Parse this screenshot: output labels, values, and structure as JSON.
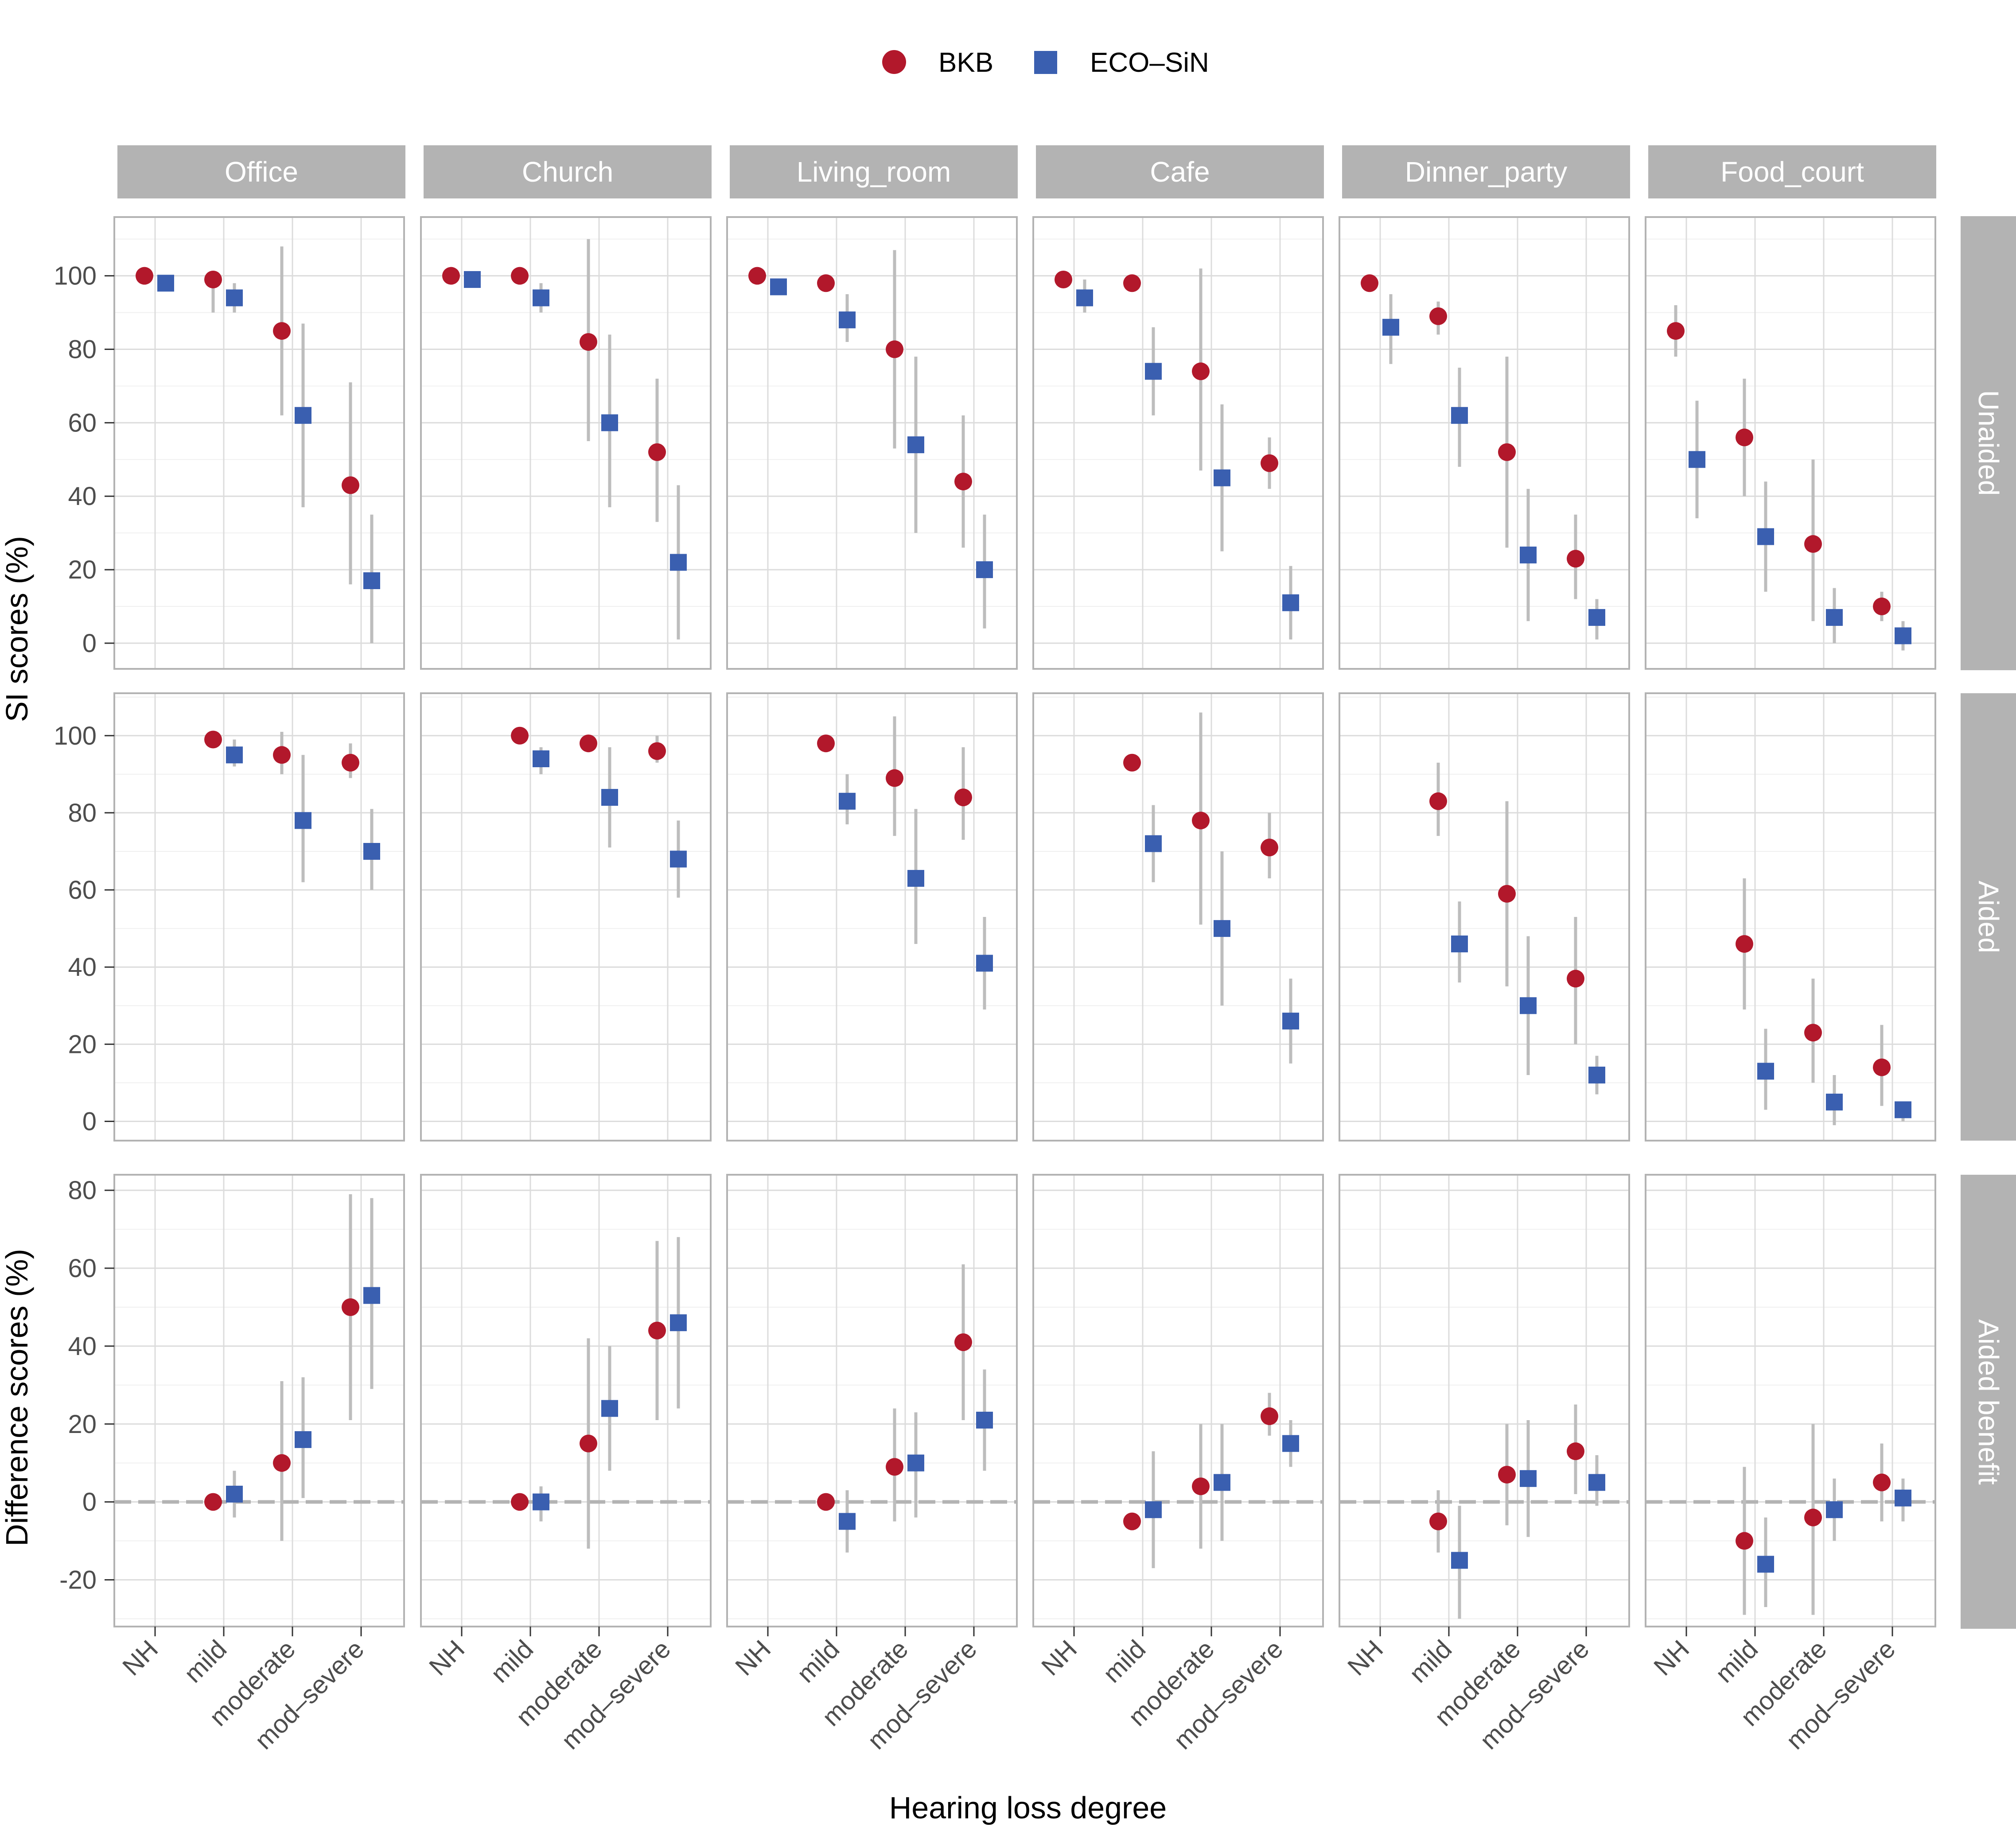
{
  "chart_data": {
    "type": "scatter",
    "description_free": true,
    "legend": {
      "position": "top",
      "entries": [
        {
          "name": "BKB",
          "color": "#b2182b",
          "shape": "circle"
        },
        {
          "name": "ECO–SiN",
          "color": "#3a5fb0",
          "shape": "square"
        }
      ]
    },
    "x_categories": [
      "NH",
      "mild",
      "moderate",
      "mod–severe"
    ],
    "xlabel": "Hearing loss degree",
    "columns": [
      "Office",
      "Church",
      "Living_room",
      "Cafe",
      "Dinner_party",
      "Food_court"
    ],
    "rows": [
      {
        "label": "Unaided",
        "ylabel": "SI scores (%)",
        "ylim": [
          -7,
          116
        ],
        "yticks": [
          0,
          20,
          40,
          60,
          80,
          100
        ],
        "zero_line": false
      },
      {
        "label": "Aided",
        "ylabel": "SI scores (%)",
        "ylim": [
          -5,
          111
        ],
        "yticks": [
          0,
          20,
          40,
          60,
          80,
          100
        ],
        "zero_line": false
      },
      {
        "label": "Aided benefit",
        "ylabel": "Difference scores (%)",
        "ylim": [
          -32,
          84
        ],
        "yticks": [
          -20,
          0,
          20,
          40,
          60,
          80
        ],
        "zero_line": true
      }
    ],
    "series": [
      {
        "name": "BKB",
        "values": [
          [
            [
              [
                100,
                null,
                null
              ],
              [
                99,
                90,
                98
              ],
              [
                85,
                62,
                108
              ],
              [
                43,
                16,
                71
              ]
            ],
            [
              [
                100,
                null,
                null
              ],
              [
                100,
                null,
                null
              ],
              [
                82,
                55,
                110
              ],
              [
                52,
                33,
                72
              ]
            ],
            [
              [
                100,
                null,
                null
              ],
              [
                98,
                null,
                null
              ],
              [
                80,
                53,
                107
              ],
              [
                44,
                26,
                62
              ]
            ],
            [
              [
                99,
                null,
                null
              ],
              [
                98,
                null,
                null
              ],
              [
                74,
                47,
                102
              ],
              [
                49,
                42,
                56
              ]
            ],
            [
              [
                98,
                null,
                null
              ],
              [
                89,
                84,
                93
              ],
              [
                52,
                26,
                78
              ],
              [
                23,
                12,
                35
              ]
            ],
            [
              [
                85,
                78,
                92
              ],
              [
                56,
                40,
                72
              ],
              [
                27,
                6,
                50
              ],
              [
                10,
                6,
                14
              ]
            ]
          ],
          [
            [
              null,
              [
                99,
                null,
                null
              ],
              [
                95,
                90,
                101
              ],
              [
                93,
                89,
                98
              ]
            ],
            [
              null,
              [
                100,
                null,
                null
              ],
              [
                98,
                null,
                null
              ],
              [
                96,
                93,
                100
              ]
            ],
            [
              null,
              [
                98,
                null,
                null
              ],
              [
                89,
                74,
                105
              ],
              [
                84,
                73,
                97
              ]
            ],
            [
              null,
              [
                93,
                null,
                null
              ],
              [
                78,
                51,
                106
              ],
              [
                71,
                63,
                80
              ]
            ],
            [
              null,
              [
                83,
                74,
                93
              ],
              [
                59,
                35,
                83
              ],
              [
                37,
                20,
                53
              ]
            ],
            [
              null,
              [
                46,
                29,
                63
              ],
              [
                23,
                10,
                37
              ],
              [
                14,
                4,
                25
              ]
            ]
          ],
          [
            [
              null,
              [
                0,
                null,
                null
              ],
              [
                10,
                -10,
                31
              ],
              [
                50,
                21,
                79
              ]
            ],
            [
              null,
              [
                0,
                null,
                null
              ],
              [
                15,
                -12,
                42
              ],
              [
                44,
                21,
                67
              ]
            ],
            [
              null,
              [
                0,
                null,
                null
              ],
              [
                9,
                -5,
                24
              ],
              [
                41,
                21,
                61
              ]
            ],
            [
              null,
              [
                -5,
                null,
                null
              ],
              [
                4,
                -12,
                20
              ],
              [
                22,
                17,
                28
              ]
            ],
            [
              null,
              [
                -5,
                -13,
                3
              ],
              [
                7,
                -6,
                20
              ],
              [
                13,
                2,
                25
              ]
            ],
            [
              null,
              [
                -10,
                -29,
                9
              ],
              [
                -4,
                -29,
                20
              ],
              [
                5,
                -5,
                15
              ]
            ]
          ]
        ]
      },
      {
        "name": "ECO–SiN",
        "values": [
          [
            [
              [
                98,
                null,
                null
              ],
              [
                94,
                90,
                98
              ],
              [
                62,
                37,
                87
              ],
              [
                17,
                0,
                35
              ]
            ],
            [
              [
                99,
                null,
                null
              ],
              [
                94,
                90,
                98
              ],
              [
                60,
                37,
                84
              ],
              [
                22,
                1,
                43
              ]
            ],
            [
              [
                97,
                null,
                null
              ],
              [
                88,
                82,
                95
              ],
              [
                54,
                30,
                78
              ],
              [
                20,
                4,
                35
              ]
            ],
            [
              [
                94,
                90,
                99
              ],
              [
                74,
                62,
                86
              ],
              [
                45,
                25,
                65
              ],
              [
                11,
                1,
                21
              ]
            ],
            [
              [
                86,
                76,
                95
              ],
              [
                62,
                48,
                75
              ],
              [
                24,
                6,
                42
              ],
              [
                7,
                1,
                12
              ]
            ],
            [
              [
                50,
                34,
                66
              ],
              [
                29,
                14,
                44
              ],
              [
                7,
                0,
                15
              ],
              [
                2,
                -2,
                6
              ]
            ]
          ],
          [
            [
              null,
              [
                95,
                92,
                99
              ],
              [
                78,
                62,
                95
              ],
              [
                70,
                60,
                81
              ]
            ],
            [
              null,
              [
                94,
                90,
                97
              ],
              [
                84,
                71,
                97
              ],
              [
                68,
                58,
                78
              ]
            ],
            [
              null,
              [
                83,
                77,
                90
              ],
              [
                63,
                46,
                81
              ],
              [
                41,
                29,
                53
              ]
            ],
            [
              null,
              [
                72,
                62,
                82
              ],
              [
                50,
                30,
                70
              ],
              [
                26,
                15,
                37
              ]
            ],
            [
              null,
              [
                46,
                36,
                57
              ],
              [
                30,
                12,
                48
              ],
              [
                12,
                7,
                17
              ]
            ],
            [
              null,
              [
                13,
                3,
                24
              ],
              [
                5,
                -1,
                12
              ],
              [
                3,
                0,
                5
              ]
            ]
          ],
          [
            [
              null,
              [
                2,
                -4,
                8
              ],
              [
                16,
                1,
                32
              ],
              [
                53,
                29,
                78
              ]
            ],
            [
              null,
              [
                0,
                -5,
                4
              ],
              [
                24,
                8,
                40
              ],
              [
                46,
                24,
                68
              ]
            ],
            [
              null,
              [
                -5,
                -13,
                3
              ],
              [
                10,
                -4,
                23
              ],
              [
                21,
                8,
                34
              ]
            ],
            [
              null,
              [
                -2,
                -17,
                13
              ],
              [
                5,
                -10,
                20
              ],
              [
                15,
                9,
                21
              ]
            ],
            [
              null,
              [
                -15,
                -30,
                -1
              ],
              [
                6,
                -9,
                21
              ],
              [
                5,
                -1,
                12
              ]
            ],
            [
              null,
              [
                -16,
                -27,
                -4
              ],
              [
                -2,
                -10,
                6
              ],
              [
                1,
                -5,
                6
              ]
            ]
          ]
        ]
      }
    ]
  }
}
